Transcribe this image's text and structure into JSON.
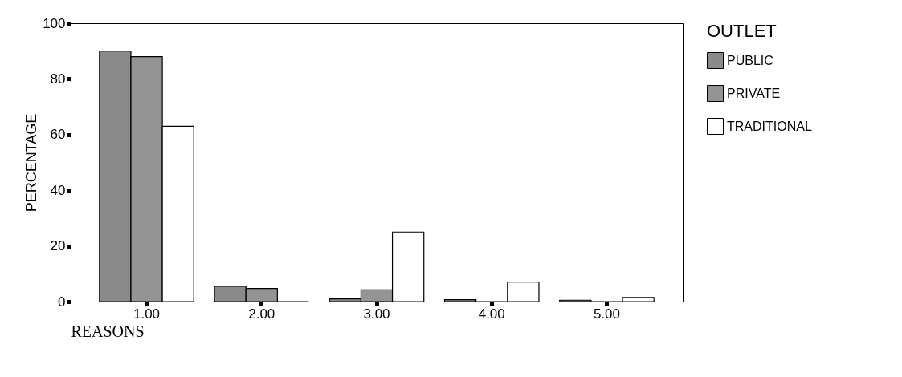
{
  "chart_data": {
    "type": "bar",
    "xlabel": "REASONS",
    "ylabel": "PERCENTAGE",
    "legend_title": "OUTLET",
    "legend": "right",
    "categories": [
      "1.00",
      "2.00",
      "3.00",
      "4.00",
      "5.00"
    ],
    "ylim": [
      0,
      100
    ],
    "yticks": [
      0,
      20,
      40,
      60,
      80,
      100
    ],
    "series": [
      {
        "name": "PUBLIC",
        "color": "#8a8a8a",
        "values": [
          90,
          5.5,
          1,
          0.7,
          0.5
        ]
      },
      {
        "name": "PRIVATE",
        "color": "#949494",
        "values": [
          88,
          4.7,
          4.2,
          0,
          0
        ]
      },
      {
        "name": "TRADITIONAL",
        "color": "#ffffff",
        "values": [
          63,
          0,
          25,
          7,
          1.5
        ]
      }
    ]
  }
}
